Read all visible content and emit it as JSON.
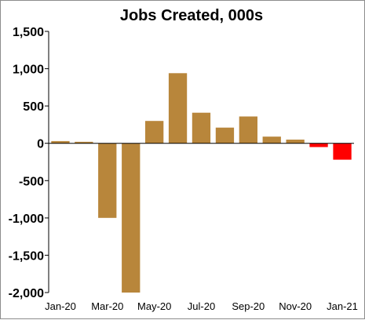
{
  "chart_data": {
    "type": "bar",
    "title": "Jobs Created, 000s",
    "xlabel": "",
    "ylabel": "",
    "categories": [
      "Jan-20",
      "Feb-20",
      "Mar-20",
      "Apr-20",
      "May-20",
      "Jun-20",
      "Jul-20",
      "Aug-20",
      "Sep-20",
      "Oct-20",
      "Nov-20",
      "Dec-20",
      "Jan-21"
    ],
    "x_tick_labels": [
      "Jan-20",
      "Mar-20",
      "May-20",
      "Jul-20",
      "Sep-20",
      "Nov-20",
      "Jan-21"
    ],
    "values": [
      30,
      20,
      -1000,
      -2000,
      300,
      940,
      410,
      210,
      360,
      90,
      50,
      -50,
      -220
    ],
    "ylim": [
      -2000,
      1500
    ],
    "y_tick_labels": [
      "1,500",
      "1,000",
      "500",
      "0",
      "-500",
      "-1,000",
      "-1,500",
      "-2,000"
    ],
    "y_ticks": [
      1500,
      1000,
      500,
      0,
      -500,
      -1000,
      -1500,
      -2000
    ],
    "grid": false,
    "legend": "none",
    "colors": {
      "positive": "#b8863b",
      "negative": "#ff0000",
      "axis": "#000000"
    }
  }
}
